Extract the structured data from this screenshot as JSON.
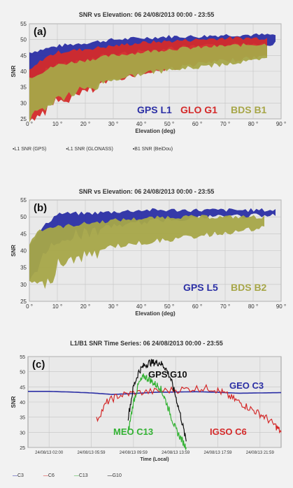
{
  "panels": [
    {
      "id": "a",
      "title": "SNR vs Elevation: 06 24/08/2013 00:00 - 23:55",
      "label": "(a)",
      "ylabel": "SNR",
      "xlabel": "Elevation (deg)",
      "legend_entries": [
        "L1 SNR (GPS)",
        "L1 SNR (GLONASS)",
        "B1 SNR (BeiDou)"
      ],
      "annotations": [
        {
          "text": "GPS L1",
          "color": "#2b2fa5"
        },
        {
          "text": "GLO G1",
          "color": "#d42a2a"
        },
        {
          "text": "BDS B1",
          "color": "#a7a648"
        }
      ]
    },
    {
      "id": "b",
      "title": "SNR vs Elevation: 06 24/08/2013 00:00 - 23:55",
      "label": "(b)",
      "ylabel": "SNR",
      "xlabel": "Elevation (deg)",
      "annotations": [
        {
          "text": "GPS L5",
          "color": "#2b2fa5"
        },
        {
          "text": "BDS B2",
          "color": "#a7a648"
        }
      ]
    },
    {
      "id": "c",
      "title": "L1/B1 SNR Time Series: 06 24/08/2013 00:00 - 23:55",
      "label": "(c)",
      "ylabel": "SNR",
      "xlabel": "Time (Local)",
      "legend_entries": [
        "C3",
        "C6",
        "C13",
        "G10"
      ],
      "annotations": [
        {
          "text": "GPS G10",
          "color": "#111111"
        },
        {
          "text": "GEO C3",
          "color": "#2b2fa5"
        },
        {
          "text": "MEO C13",
          "color": "#33b233"
        },
        {
          "text": "IGSO C6",
          "color": "#d42a2a"
        }
      ]
    }
  ],
  "chart_data": [
    {
      "type": "scatter",
      "title": "SNR vs Elevation: 06 24/08/2013 00:00 - 23:55",
      "xlabel": "Elevation (deg)",
      "ylabel": "SNR",
      "xlim": [
        0,
        90
      ],
      "ylim": [
        25,
        55
      ],
      "xticks": [
        "0 °",
        "10 °",
        "20 °",
        "30 °",
        "40 °",
        "50 °",
        "60 °",
        "70 °",
        "80 °",
        "90 °"
      ],
      "yticks": [
        "25",
        "30",
        "35",
        "40",
        "45",
        "50",
        "55"
      ],
      "grid": true,
      "series": [
        {
          "name": "L1 SNR (GPS)",
          "color": "#2b2fa5",
          "x": [
            0,
            5,
            10,
            20,
            30,
            40,
            50,
            60,
            70,
            80,
            88
          ],
          "low": [
            38,
            41,
            43,
            45,
            46,
            47,
            48,
            48.5,
            49,
            49.5,
            49.5
          ],
          "high": [
            46,
            47,
            48,
            49,
            50,
            50.5,
            51,
            51,
            51.5,
            51.5,
            51.5
          ]
        },
        {
          "name": "L1 SNR (GLONASS)",
          "color": "#d42a2a",
          "x": [
            0,
            5,
            10,
            20,
            30,
            40,
            50,
            60,
            70,
            80,
            85
          ],
          "low": [
            26,
            29,
            32,
            35,
            38,
            40,
            41.5,
            43,
            44,
            45,
            45.5
          ],
          "high": [
            40,
            44,
            46,
            47,
            48,
            49,
            49.5,
            50,
            50.5,
            50.5,
            50.5
          ]
        },
        {
          "name": "B1 SNR (BeiDou)",
          "color": "#a7a648",
          "x": [
            0,
            5,
            10,
            20,
            30,
            40,
            50,
            60,
            70,
            80,
            85
          ],
          "low": [
            27,
            30,
            33,
            36,
            38,
            40,
            41,
            42,
            43,
            44,
            44.5
          ],
          "high": [
            38,
            40,
            42,
            43.5,
            45,
            46,
            47,
            47.5,
            48,
            48.5,
            48.5
          ]
        }
      ]
    },
    {
      "type": "scatter",
      "title": "SNR vs Elevation: 06 24/08/2013 00:00 - 23:55",
      "xlabel": "Elevation (deg)",
      "ylabel": "SNR",
      "xlim": [
        0,
        90
      ],
      "ylim": [
        25,
        55
      ],
      "xticks": [
        "0 °",
        "10 °",
        "20 °",
        "30 °",
        "40 °",
        "50 °",
        "60 °",
        "70 °",
        "80 °",
        "90 °"
      ],
      "yticks": [
        "25",
        "30",
        "35",
        "40",
        "45",
        "50",
        "55"
      ],
      "grid": true,
      "series": [
        {
          "name": "GPS L5",
          "color": "#2b2fa5",
          "x": [
            0,
            5,
            10,
            20,
            30,
            40,
            50,
            60,
            70,
            80,
            88
          ],
          "low": [
            33,
            40,
            45,
            47,
            48,
            49,
            50,
            50.5,
            51,
            51,
            51
          ],
          "high": [
            42,
            47,
            51,
            51,
            51.5,
            52,
            52,
            52,
            52,
            52,
            52
          ]
        },
        {
          "name": "BDS B2",
          "color": "#a7a648",
          "x": [
            0,
            3,
            8,
            10,
            20,
            30,
            40,
            50,
            60,
            70,
            80,
            84
          ],
          "low": [
            33,
            31,
            33,
            38,
            40,
            42,
            43,
            44,
            45,
            46,
            47,
            47.5
          ],
          "high": [
            42,
            46,
            47,
            47,
            48,
            49,
            49.5,
            50,
            50,
            50,
            50,
            50
          ]
        }
      ]
    },
    {
      "type": "line",
      "title": "L1/B1 SNR Time Series: 06 24/08/2013 00:00 - 23:55",
      "xlabel": "Time (Local)",
      "ylabel": "SNR",
      "ylim": [
        25,
        55
      ],
      "xticks": [
        "24/08/13 02:00",
        "24/08/13 05:59",
        "24/08/13 09:59",
        "24/08/13 13:59",
        "24/08/13 17:59",
        "24/08/13 21:59"
      ],
      "yticks": [
        "25",
        "30",
        "35",
        "40",
        "45",
        "50",
        "55"
      ],
      "grid": true,
      "series": [
        {
          "name": "C3",
          "color": "#2b2fa5",
          "x": [
            0,
            2,
            4,
            6,
            8,
            10,
            12,
            14,
            16,
            18,
            20,
            22,
            24
          ],
          "y": [
            43.5,
            43.5,
            43.3,
            43,
            42.5,
            42.8,
            43.2,
            43.3,
            43.4,
            43.2,
            42.9,
            43,
            43.1
          ]
        },
        {
          "name": "C6",
          "color": "#d42a2a",
          "x": [
            6.5,
            7.5,
            8.5,
            10,
            12,
            14,
            16,
            17.5,
            18.5,
            19.5,
            20.5,
            21.5,
            22.5,
            23.5,
            24
          ],
          "y": [
            34,
            40,
            42,
            43,
            43.5,
            44,
            44.5,
            44.5,
            43,
            41,
            39,
            37,
            35,
            32,
            30
          ]
        },
        {
          "name": "C13",
          "color": "#33b233",
          "x": [
            9.5,
            10,
            10.5,
            11,
            11.5,
            12,
            12.5,
            13,
            13.5,
            14,
            14.5,
            15
          ],
          "y": [
            30,
            40,
            46,
            48.5,
            47.5,
            46,
            45,
            41,
            36,
            31,
            28,
            25
          ]
        },
        {
          "name": "G10",
          "color": "#111111",
          "x": [
            9.5,
            10,
            10.5,
            11,
            11.5,
            12,
            12.5,
            13,
            13.5,
            14,
            14.5,
            15
          ],
          "y": [
            35,
            45,
            50,
            52,
            53,
            53,
            53,
            51.5,
            48,
            42,
            35,
            27
          ]
        }
      ]
    }
  ]
}
